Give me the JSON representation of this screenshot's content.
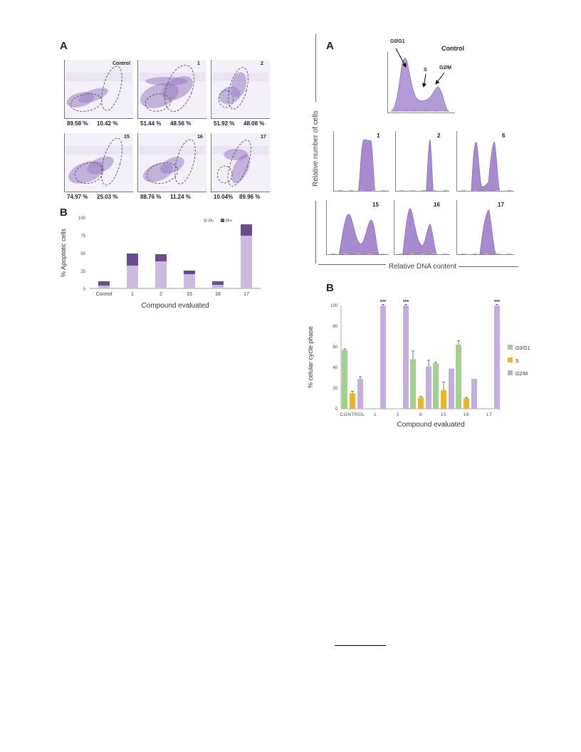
{
  "left": {
    "panel_a_label": "A",
    "panel_b_label": "B",
    "flow_panels": [
      {
        "title": "Control",
        "left_pct": "89.58 %",
        "right_pct": "10.42 %"
      },
      {
        "title": "1",
        "left_pct": "51.44 %",
        "right_pct": "48.56 %"
      },
      {
        "title": "2",
        "left_pct": "51.92 %",
        "right_pct": "48.08 %"
      },
      {
        "title": "15",
        "left_pct": "74.97 %",
        "right_pct": "25.03 %"
      },
      {
        "title": "16",
        "left_pct": "88.76 %",
        "right_pct": "11.24 %"
      },
      {
        "title": "17",
        "left_pct": "10.04%",
        "right_pct": "89.96 %"
      }
    ]
  },
  "right": {
    "panel_a_label": "A",
    "panel_b_label": "B",
    "control_title": "Control",
    "annotations": {
      "g0g1": "G0/G1",
      "s": "S",
      "g2m": "G2/M"
    },
    "hist_titles": [
      "1",
      "2",
      "6",
      "15",
      "16",
      "17"
    ],
    "ylabel": "Relative number of cells",
    "xlabel": "Relative DNA content"
  },
  "chart_data": [
    {
      "type": "bar",
      "stacked": true,
      "categories": [
        "Control",
        "1",
        "2",
        "15",
        "16",
        "17"
      ],
      "series": [
        {
          "name": "PI-",
          "color": "#cbbbdf",
          "values": [
            4,
            32,
            38,
            20,
            5,
            74
          ]
        },
        {
          "name": "PI+",
          "color": "#6b4a94",
          "values": [
            6,
            17,
            10,
            5,
            5,
            16
          ]
        }
      ],
      "xlabel": "Compound  evaluated",
      "ylabel": "% Apoptotic cells",
      "ylim": [
        0,
        100
      ],
      "yticks": [
        0,
        25,
        50,
        75,
        100
      ],
      "legend": "top-right",
      "grid": false
    },
    {
      "type": "bar",
      "categories": [
        "CONTROL",
        "1",
        "2",
        "6",
        "15",
        "16",
        "17"
      ],
      "series": [
        {
          "name": "G0/G1",
          "color": "#9fd08e",
          "values": [
            57,
            null,
            null,
            48,
            44,
            62,
            null
          ],
          "errors": [
            1,
            0,
            0,
            8,
            1,
            4,
            0
          ]
        },
        {
          "name": "S",
          "color": "#f2b31e",
          "values": [
            15,
            null,
            null,
            11,
            18,
            10,
            null
          ],
          "errors": [
            2,
            0,
            0,
            1,
            8,
            1,
            0
          ]
        },
        {
          "name": "G2/M",
          "color": "#c5acdb",
          "values": [
            29,
            100,
            100,
            41,
            39,
            29,
            100
          ],
          "errors": [
            2,
            1,
            1,
            6,
            0,
            0,
            1
          ]
        }
      ],
      "significance": [
        "",
        "***",
        "***",
        "",
        "",
        "",
        "***"
      ],
      "xlabel": "Compound evaluated",
      "ylabel": "% celular cycle phase",
      "ylim": [
        0,
        100
      ],
      "yticks": [
        0,
        20,
        40,
        60,
        80,
        100
      ],
      "legend": "right",
      "grid": false
    }
  ]
}
